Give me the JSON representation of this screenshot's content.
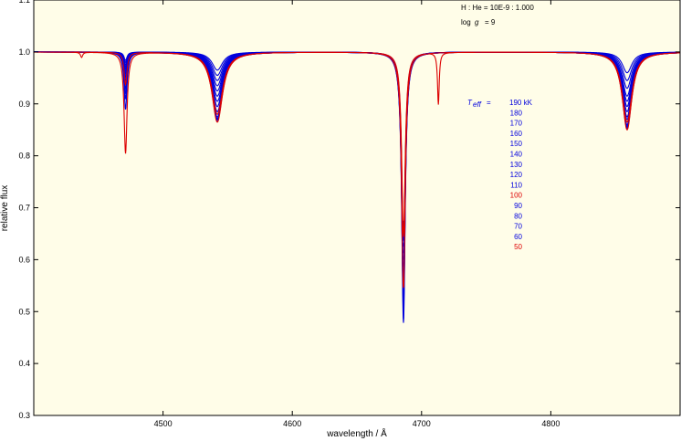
{
  "chart_data": {
    "type": "line",
    "title": "",
    "xlabel": "wavelength / Å",
    "ylabel": "relative flux",
    "xlim": [
      4400,
      4900
    ],
    "ylim": [
      0.3,
      1.1
    ],
    "x_ticks": [
      {
        "value": 4500,
        "label": "4500"
      },
      {
        "value": 4600,
        "label": "4600"
      },
      {
        "value": 4700,
        "label": "4700"
      },
      {
        "value": 4800,
        "label": "4800"
      }
    ],
    "y_ticks": [
      {
        "value": 0.3,
        "label": "0.3"
      },
      {
        "value": 0.4,
        "label": "0.4"
      },
      {
        "value": 0.5,
        "label": "0.5"
      },
      {
        "value": 0.6,
        "label": "0.6"
      },
      {
        "value": 0.7,
        "label": "0.7"
      },
      {
        "value": 0.8,
        "label": "0.8"
      },
      {
        "value": 0.9,
        "label": "0.9"
      },
      {
        "value": 1.0,
        "label": "1.0"
      },
      {
        "value": 1.1,
        "label": "1.1"
      }
    ],
    "grid": false,
    "background": "#fffde8",
    "annotations": {
      "composition": "H : He = 10E-9 : 1.000",
      "logg_label": "log",
      "logg_symbol": "g",
      "logg_value": "= 9",
      "teff_symbol": "T",
      "teff_sub": "eff",
      "teff_eq": "="
    },
    "legend_placement": "right",
    "series": [
      {
        "label": "190 kK",
        "teff_kK": 190,
        "color": "#0000dd",
        "depths": [
          0.0,
          0.016,
          0.035,
          0.39,
          0.04
        ]
      },
      {
        "label": "180",
        "teff_kK": 180,
        "color": "#0000dd",
        "depths": [
          0.0,
          0.02,
          0.045,
          0.4,
          0.055
        ]
      },
      {
        "label": "170",
        "teff_kK": 170,
        "color": "#0000dd",
        "depths": [
          0.0,
          0.024,
          0.055,
          0.41,
          0.07
        ]
      },
      {
        "label": "160",
        "teff_kK": 160,
        "color": "#0000dd",
        "depths": [
          0.0,
          0.028,
          0.065,
          0.42,
          0.085
        ]
      },
      {
        "label": "150",
        "teff_kK": 150,
        "color": "#0000dd",
        "depths": [
          0.0,
          0.032,
          0.075,
          0.43,
          0.095
        ]
      },
      {
        "label": "140",
        "teff_kK": 140,
        "color": "#0000dd",
        "depths": [
          0.0,
          0.037,
          0.085,
          0.44,
          0.105
        ]
      },
      {
        "label": "130",
        "teff_kK": 130,
        "color": "#0000dd",
        "depths": [
          0.0,
          0.042,
          0.095,
          0.45,
          0.115
        ]
      },
      {
        "label": "120",
        "teff_kK": 120,
        "color": "#0000dd",
        "depths": [
          0.0,
          0.048,
          0.105,
          0.46,
          0.125
        ]
      },
      {
        "label": "110",
        "teff_kK": 110,
        "color": "#0000dd",
        "depths": [
          0.0,
          0.055,
          0.115,
          0.47,
          0.13
        ]
      },
      {
        "label": "100",
        "teff_kK": 100,
        "color": "#dd0000",
        "depths": [
          0.0,
          0.062,
          0.12,
          0.48,
          0.135
        ]
      },
      {
        "label": "90",
        "teff_kK": 90,
        "color": "#0000dd",
        "depths": [
          0.0,
          0.07,
          0.125,
          0.49,
          0.14
        ]
      },
      {
        "label": "80",
        "teff_kK": 80,
        "color": "#0000dd",
        "depths": [
          0.0,
          0.08,
          0.128,
          0.5,
          0.143
        ]
      },
      {
        "label": "70",
        "teff_kK": 70,
        "color": "#0000dd",
        "depths": [
          0.0,
          0.09,
          0.13,
          0.51,
          0.145
        ]
      },
      {
        "label": "60",
        "teff_kK": 60,
        "color": "#0000dd",
        "depths": [
          0.0,
          0.11,
          0.132,
          0.53,
          0.147
        ]
      },
      {
        "label": "50",
        "teff_kK": 50,
        "color": "#dd0000",
        "depths": [
          0.01,
          0.195,
          0.135,
          0.36,
          0.15
        ]
      }
    ],
    "lines": [
      {
        "center": 4437,
        "width": 1.0
      },
      {
        "center": 4471,
        "width": 1.4
      },
      {
        "center": 4542,
        "width": 5.0
      },
      {
        "center": 4686,
        "width": 1.6
      },
      {
        "center": 4859,
        "width": 4.5
      }
    ],
    "extra_lines_50kK": [
      {
        "center": 4713,
        "width": 0.8,
        "depth": 0.1
      }
    ],
    "emission_peak": {
      "center": 4686,
      "height": 0.065,
      "width": 0.4
    }
  }
}
